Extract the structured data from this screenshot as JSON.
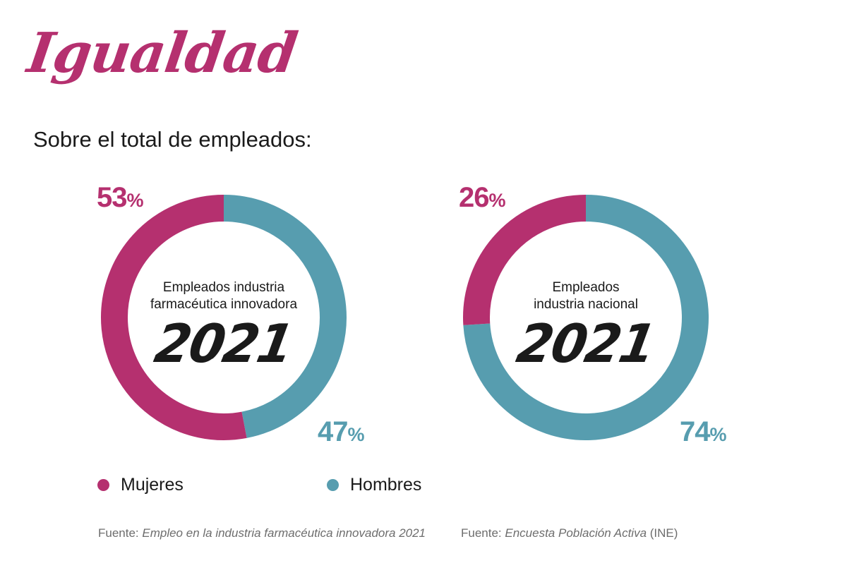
{
  "title": "Igualdad",
  "subtitle": "Sobre el total de empleados:",
  "colors": {
    "mujeres": "#b5306f",
    "hombres": "#579daf",
    "title": "#b5306f"
  },
  "chart_data": [
    {
      "type": "pie",
      "variant": "donut",
      "center_label_line1": "Empleados industria",
      "center_label_line2": "farmacéutica innovadora",
      "center_year": "2021",
      "series": [
        {
          "name": "Mujeres",
          "value": 53,
          "label": "53",
          "unit": "%"
        },
        {
          "name": "Hombres",
          "value": 47,
          "label": "47",
          "unit": "%"
        }
      ],
      "source_prefix": "Fuente: ",
      "source_title": "Empleo en la industria farmacéutica innovadora 2021",
      "source_suffix": ""
    },
    {
      "type": "pie",
      "variant": "donut",
      "center_label_line1": "Empleados",
      "center_label_line2": "industria nacional",
      "center_year": "2021",
      "series": [
        {
          "name": "Mujeres",
          "value": 26,
          "label": "26",
          "unit": "%"
        },
        {
          "name": "Hombres",
          "value": 74,
          "label": "74",
          "unit": "%"
        }
      ],
      "source_prefix": "Fuente: ",
      "source_title": "Encuesta Población Activa",
      "source_suffix": " (INE)"
    }
  ],
  "legend": [
    {
      "label": "Mujeres"
    },
    {
      "label": "Hombres"
    }
  ]
}
